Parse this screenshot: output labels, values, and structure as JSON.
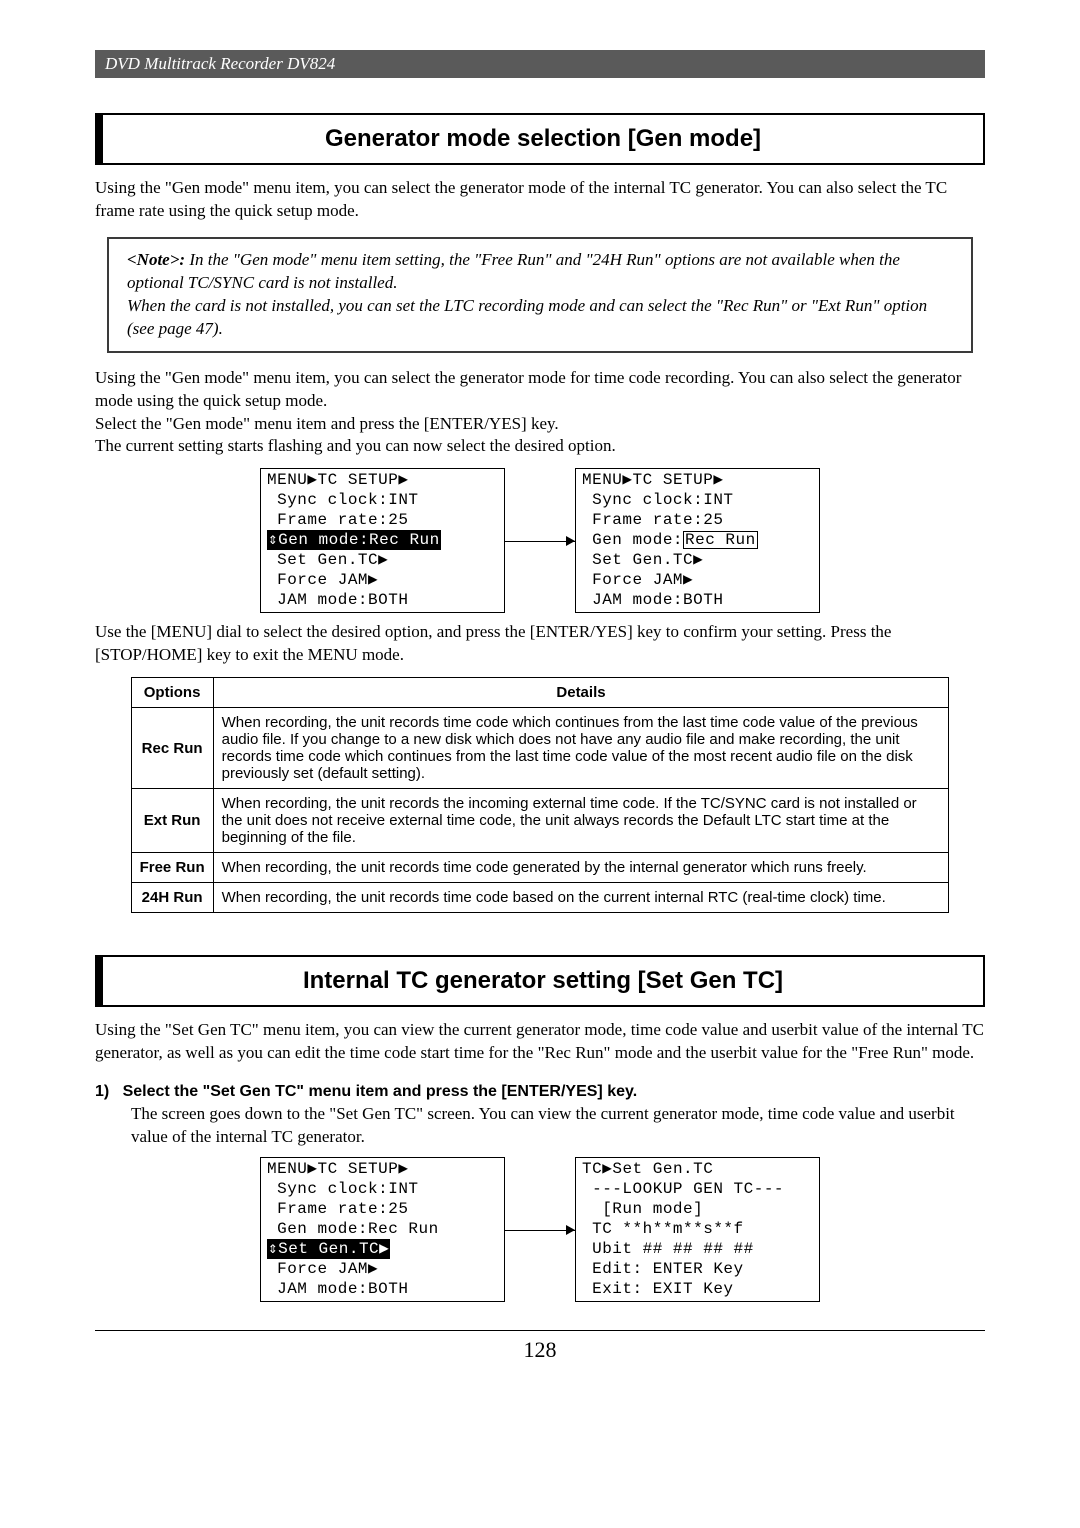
{
  "header": {
    "title": "DVD Multitrack Recorder DV824"
  },
  "section1": {
    "title": "Generator mode selection [Gen mode]",
    "intro": "Using the \"Gen mode\" menu item, you can select the generator mode of the internal TC generator. You can also select the TC frame rate using the quick setup mode.",
    "note_label": "<Note>:",
    "note_body": " In the \"Gen mode\" menu item setting, the \"Free Run\" and \"24H Run\" options are not available when the optional TC/SYNC card is not installed.\nWhen the card is not installed, you can set the LTC recording mode and can select the \"Rec Run\" or \"Ext Run\" option (see page 47).",
    "para2": "Using the \"Gen mode\" menu item, you can select the generator mode for time code recording. You can also select the generator mode using the quick setup mode.\nSelect the \"Gen mode\" menu item and press the [ENTER/YES] key.\nThe current setting starts flashing and you can now select the desired option.",
    "lcd_left": {
      "title": "MENU▶TC SETUP▶",
      "lines": [
        "Sync clock:INT",
        "Frame rate:25",
        "⇕Gen mode:Rec Run",
        "Set Gen.TC▶",
        "Force JAM▶",
        "JAM mode:BOTH"
      ],
      "hl_index": 2
    },
    "lcd_right": {
      "title": "MENU▶TC SETUP▶",
      "lines": [
        "Sync clock:INT",
        "Frame rate:25",
        "Gen mode:",
        "Set Gen.TC▶",
        "Force JAM▶",
        "JAM mode:BOTH"
      ],
      "boxed_after_index": 2,
      "boxed_text": "Rec Run"
    },
    "para3": "Use the [MENU] dial to select the desired option, and press the [ENTER/YES] key to confirm your setting. Press the [STOP/HOME] key to exit the MENU mode.",
    "table": {
      "headers": [
        "Options",
        "Details"
      ],
      "rows": [
        [
          "Rec Run",
          "When recording, the unit records time code which continues from the last time code value of the previous audio file. If you change to a new disk which does not have any audio file and make recording, the unit records time code which continues from the last time code value of the most recent audio file on the disk previously set (default setting)."
        ],
        [
          "Ext Run",
          "When recording, the unit records the incoming external time code. If the TC/SYNC card is not installed or the unit does not receive external time code, the unit always records the Default LTC start time at the beginning of the file."
        ],
        [
          "Free Run",
          "When recording, the unit records time code generated by the internal generator which runs freely."
        ],
        [
          "24H Run",
          "When recording, the unit records time code based on the current internal RTC (real-time clock) time."
        ]
      ]
    }
  },
  "section2": {
    "title": "Internal TC generator setting [Set Gen TC]",
    "intro": "Using the \"Set Gen TC\" menu item, you can view the current generator mode, time code value and userbit value of the internal TC generator, as well as you can edit the time code start time for the \"Rec Run\" mode and the userbit value for the \"Free Run\" mode.",
    "step_num": "1)",
    "step_title": "Select the \"Set Gen TC\" menu item and press the [ENTER/YES] key.",
    "step_body": "The screen goes down to the \"Set Gen TC\" screen. You can view the current generator mode, time code value and userbit value of the internal TC generator.",
    "lcd_left": {
      "title": "MENU▶TC SETUP▶",
      "lines": [
        "Sync clock:INT",
        "Frame rate:25",
        "Gen mode:Rec Run",
        "⇕Set Gen.TC▶",
        "Force JAM▶",
        "JAM mode:BOTH"
      ],
      "hl_index": 3
    },
    "lcd_right": {
      "title": "TC▶Set Gen.TC",
      "lines": [
        "---LOOKUP GEN TC---",
        "     [Run mode]",
        "TC  **h**m**s**f",
        "Ubit ## ## ## ##",
        "Edit:  ENTER Key",
        "Exit:  EXIT  Key"
      ]
    }
  },
  "page_number": "128"
}
